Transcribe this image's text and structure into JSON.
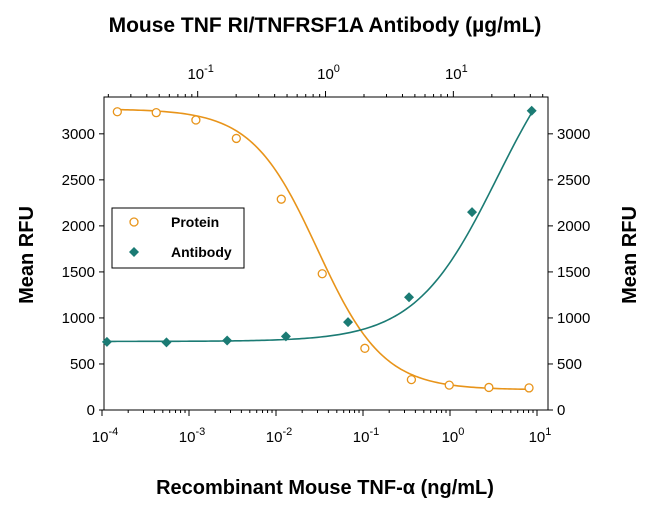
{
  "chart_data": {
    "type": "scatter",
    "title": "Mouse TNF RI/TNFRSF1A Antibody (µg/mL)",
    "xlabel": "Recombinant Mouse TNF-α (ng/mL)",
    "ylabel": "Mean RFU",
    "ylabel_right": "Mean RFU",
    "x_scale": "log",
    "xlim": [
      0.0001,
      10
    ],
    "ylim": [
      0,
      3400
    ],
    "x_ticks": [
      {
        "value": 0.0001,
        "base": "10",
        "exp": "-4"
      },
      {
        "value": 0.001,
        "base": "10",
        "exp": "-3"
      },
      {
        "value": 0.01,
        "base": "10",
        "exp": "-2"
      },
      {
        "value": 0.1,
        "base": "10",
        "exp": "-1"
      },
      {
        "value": 1,
        "base": "10",
        "exp": "0"
      },
      {
        "value": 10,
        "base": "10",
        "exp": "1"
      }
    ],
    "x_top_ticks": [
      {
        "value": 0.1,
        "base": "10",
        "exp": "-1"
      },
      {
        "value": 1,
        "base": "10",
        "exp": "0"
      },
      {
        "value": 10,
        "base": "10",
        "exp": "1"
      }
    ],
    "x_top_lim": [
      0.0185,
      55
    ],
    "y_ticks": [
      0,
      500,
      1000,
      1500,
      2000,
      2500,
      3000
    ],
    "y_ticks_right": [
      0,
      500,
      1000,
      1500,
      2000,
      2500,
      3000
    ],
    "grid": false,
    "legend_position": "left-middle",
    "series": [
      {
        "name": "Protein",
        "marker": "open-circle",
        "color": "#E8941A",
        "axis": "bottom",
        "points": [
          [
            0.00015,
            3240
          ],
          [
            0.00042,
            3230
          ],
          [
            0.0012,
            3150
          ],
          [
            0.0035,
            2950
          ],
          [
            0.0115,
            2290
          ],
          [
            0.034,
            1480
          ],
          [
            0.105,
            670
          ],
          [
            0.36,
            330
          ],
          [
            0.98,
            270
          ],
          [
            2.8,
            245
          ],
          [
            8.1,
            240
          ]
        ],
        "curve": {
          "top": 3270,
          "bottom": 220,
          "ec50": 0.03,
          "hill": -1.15
        }
      },
      {
        "name": "Antibody",
        "marker": "filled-diamond",
        "color": "#1B7B74",
        "axis": "top",
        "points": [
          [
            0.0195,
            740
          ],
          [
            0.057,
            735
          ],
          [
            0.17,
            755
          ],
          [
            0.49,
            800
          ],
          [
            1.5,
            955
          ],
          [
            4.5,
            1225
          ],
          [
            14,
            2150
          ],
          [
            41,
            3250
          ]
        ],
        "curve": {
          "top": 4300,
          "bottom": 745,
          "ec50": 22,
          "hill": 1.35
        }
      }
    ]
  }
}
